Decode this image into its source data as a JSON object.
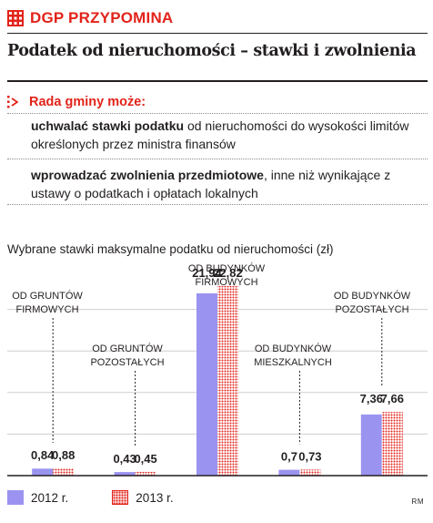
{
  "header": {
    "brand": "DGP PRZYPOMINA",
    "headline": "Podatek od nieruchomości – stawki i zwolnienia"
  },
  "info": {
    "heading": "Rada gminy może:",
    "item1_bold": "uchwalać stawki podatku",
    "item1_rest": " od nieruchomości do wysokości limitów określonych przez ministra finansów",
    "item2_bold": "wprowadzać zwolnienia przedmiotowe",
    "item2_rest": ", inne niż wynikające z ustawy o podatkach i opłatach lokalnych"
  },
  "chart_caption": "Wybrane stawki maksymalne podatku od nieruchomości (zł)",
  "chart_data": {
    "type": "bar",
    "title": "Wybrane stawki maksymalne podatku od nieruchomości (zł)",
    "categories": [
      [
        "OD GRUNTÓW",
        "FIRMOWYCH"
      ],
      [
        "OD GRUNTÓW",
        "POZOSTAŁYCH"
      ],
      [
        "OD BUDYNKÓW",
        "FIRMOWYCH"
      ],
      [
        "OD BUDYNKÓW",
        "MIESZKALNYCH"
      ],
      [
        "OD BUDYNKÓW",
        "POZOSTAŁYCH"
      ]
    ],
    "series": [
      {
        "name": "2012 r.",
        "values": [
          0.84,
          0.43,
          21.94,
          0.7,
          7.36
        ],
        "labels": [
          "0,84",
          "0,43",
          "21,94",
          "0,7",
          "7,36"
        ],
        "color": "#9b93f0"
      },
      {
        "name": "2013 r.",
        "values": [
          0.88,
          0.45,
          22.82,
          0.73,
          7.66
        ],
        "labels": [
          "0,88",
          "0,45",
          "22,82",
          "0,73",
          "7,66"
        ],
        "color": "#e2231a",
        "pattern": "dotted"
      }
    ],
    "ylim": [
      0,
      25
    ],
    "grid": true,
    "legend": "bottom-left"
  },
  "legend": {
    "s2012": "2012 r.",
    "s2013": "2013 r."
  },
  "author": "RM",
  "colors": {
    "accent": "#e2231a",
    "bar2012": "#9b93f0",
    "text": "#231f20",
    "grid": "#cfcfcf"
  },
  "icons": {
    "brand": "calendar-icon",
    "heading": "arrow-marker-icon"
  }
}
